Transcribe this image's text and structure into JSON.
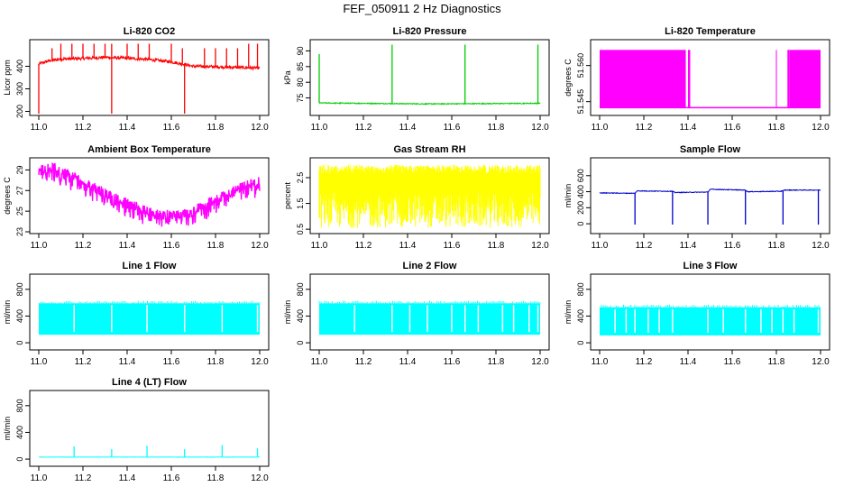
{
  "figure": {
    "title": "FEF_050911  2 Hz Diagnostics"
  },
  "chart_data": [
    {
      "type": "line",
      "title": "Li-820 CO2",
      "ylabel": "Licor ppm",
      "color": "#ff0000",
      "xlim": [
        11.0,
        12.0
      ],
      "ylim": [
        190,
        510
      ],
      "x_ticks": [
        "11.0",
        "11.2",
        "11.4",
        "11.6",
        "11.8",
        "12.0"
      ],
      "y_ticks": [
        200,
        300,
        400
      ],
      "baseline": [
        [
          11.0,
          410
        ],
        [
          11.05,
          425
        ],
        [
          11.1,
          432
        ],
        [
          11.2,
          435
        ],
        [
          11.3,
          440
        ],
        [
          11.4,
          436
        ],
        [
          11.5,
          430
        ],
        [
          11.6,
          420
        ],
        [
          11.65,
          410
        ],
        [
          11.7,
          400
        ],
        [
          11.8,
          398
        ],
        [
          11.9,
          395
        ],
        [
          12.0,
          392
        ]
      ],
      "noise": 14,
      "spikes": [
        [
          11.0,
          190
        ],
        [
          11.06,
          480
        ],
        [
          11.1,
          500
        ],
        [
          11.15,
          500
        ],
        [
          11.2,
          500
        ],
        [
          11.25,
          500
        ],
        [
          11.3,
          500
        ],
        [
          11.33,
          190
        ],
        [
          11.33,
          500
        ],
        [
          11.4,
          500
        ],
        [
          11.45,
          500
        ],
        [
          11.5,
          500
        ],
        [
          11.6,
          500
        ],
        [
          11.65,
          480
        ],
        [
          11.66,
          190
        ],
        [
          11.75,
          480
        ],
        [
          11.8,
          480
        ],
        [
          11.85,
          480
        ],
        [
          11.9,
          480
        ],
        [
          11.95,
          500
        ],
        [
          11.99,
          500
        ]
      ]
    },
    {
      "type": "line",
      "title": "Li-820 Pressure",
      "ylabel": "kPa",
      "color": "#00cc00",
      "xlim": [
        11.0,
        12.0
      ],
      "ylim": [
        70,
        93
      ],
      "x_ticks": [
        "11.0",
        "11.2",
        "11.4",
        "11.6",
        "11.8",
        "12.0"
      ],
      "y_ticks": [
        75,
        80,
        85,
        90
      ],
      "baseline": [
        [
          11.0,
          73.4
        ],
        [
          11.5,
          73.1
        ],
        [
          12.0,
          73.3
        ]
      ],
      "noise": 0.3,
      "spikes": [
        [
          11.0,
          89
        ],
        [
          11.33,
          92
        ],
        [
          11.66,
          92
        ],
        [
          11.99,
          92
        ]
      ]
    },
    {
      "type": "area",
      "title": "Li-820 Temperature",
      "ylabel": "degrees C",
      "color": "#ff00ff",
      "xlim": [
        11.0,
        12.0
      ],
      "ylim": [
        51.54,
        51.57
      ],
      "x_ticks": [
        "11.0",
        "11.2",
        "11.4",
        "11.6",
        "11.8",
        "12.0"
      ],
      "y_ticks": [
        "51.545",
        "51.560"
      ],
      "y_tick_values": [
        51.545,
        51.56
      ],
      "fill_ranges": [
        [
          11.0,
          11.39
        ],
        [
          11.4,
          11.41
        ],
        [
          11.85,
          11.86
        ],
        [
          11.86,
          12.0
        ]
      ],
      "low_level": 51.5425,
      "high_level": 51.5665,
      "spikes": [
        [
          11.8,
          51.5665
        ]
      ]
    },
    {
      "type": "line",
      "title": "Ambient Box Temperature",
      "ylabel": "degrees C",
      "color": "#ff00ff",
      "xlim": [
        11.0,
        12.0
      ],
      "ylim": [
        23,
        30
      ],
      "x_ticks": [
        "11.0",
        "11.2",
        "11.4",
        "11.6",
        "11.8",
        "12.0"
      ],
      "y_ticks": [
        23,
        25,
        27,
        29
      ],
      "baseline": [
        [
          11.0,
          29.0
        ],
        [
          11.05,
          29.3
        ],
        [
          11.1,
          29.0
        ],
        [
          11.2,
          28.0
        ],
        [
          11.3,
          26.8
        ],
        [
          11.4,
          25.8
        ],
        [
          11.5,
          25.0
        ],
        [
          11.6,
          24.6
        ],
        [
          11.65,
          24.7
        ],
        [
          11.7,
          25.1
        ],
        [
          11.8,
          26.2
        ],
        [
          11.9,
          27.2
        ],
        [
          12.0,
          28.0
        ]
      ],
      "noise": 0.9,
      "spikes": []
    },
    {
      "type": "area",
      "title": "Gas Stream RH",
      "ylabel": "percent",
      "color": "#ffff00",
      "xlim": [
        11.0,
        12.0
      ],
      "ylim": [
        0.4,
        3.2
      ],
      "x_ticks": [
        "11.0",
        "11.2",
        "11.4",
        "11.6",
        "11.8",
        "12.0"
      ],
      "y_ticks": [
        "0.5",
        "1.5",
        "2.5"
      ],
      "y_tick_values": [
        0.5,
        1.5,
        2.5
      ],
      "band": [
        0.55,
        3.0
      ]
    },
    {
      "type": "line",
      "title": "Sample Flow",
      "ylabel": "ml/min",
      "color": "#0000cc",
      "xlim": [
        11.0,
        12.0
      ],
      "ylim": [
        -100,
        800
      ],
      "x_ticks": [
        "11.0",
        "11.2",
        "11.4",
        "11.6",
        "11.8",
        "12.0"
      ],
      "y_ticks": [
        0,
        200,
        400,
        600
      ],
      "baseline": [
        [
          11.0,
          385
        ],
        [
          11.16,
          380
        ],
        [
          11.17,
          410
        ],
        [
          11.33,
          405
        ],
        [
          11.34,
          390
        ],
        [
          11.49,
          395
        ],
        [
          11.5,
          430
        ],
        [
          11.66,
          420
        ],
        [
          11.67,
          400
        ],
        [
          11.82,
          405
        ],
        [
          11.84,
          420
        ],
        [
          11.99,
          420
        ]
      ],
      "noise": 8,
      "spikes": [
        [
          11.16,
          -10
        ],
        [
          11.33,
          -10
        ],
        [
          11.49,
          -10
        ],
        [
          11.66,
          -10
        ],
        [
          11.83,
          -10
        ],
        [
          11.99,
          -10
        ]
      ]
    },
    {
      "type": "area",
      "title": "Line 1 Flow",
      "ylabel": "ml/min",
      "color": "#00ffff",
      "xlim": [
        11.0,
        12.0
      ],
      "ylim": [
        -80,
        1000
      ],
      "x_ticks": [
        "11.0",
        "11.2",
        "11.4",
        "11.6",
        "11.8",
        "12.0"
      ],
      "y_ticks": [
        0,
        400,
        800
      ],
      "band": [
        120,
        590
      ],
      "gaps": [
        11.16,
        11.33,
        11.49,
        11.66,
        11.83,
        11.99
      ]
    },
    {
      "type": "area",
      "title": "Line 2 Flow",
      "ylabel": "ml/min",
      "color": "#00ffff",
      "xlim": [
        11.0,
        12.0
      ],
      "ylim": [
        -80,
        1000
      ],
      "x_ticks": [
        "11.0",
        "11.2",
        "11.4",
        "11.6",
        "11.8",
        "12.0"
      ],
      "y_ticks": [
        0,
        400,
        800
      ],
      "band": [
        120,
        590
      ],
      "gaps": [
        11.16,
        11.33,
        11.41,
        11.49,
        11.6,
        11.66,
        11.72,
        11.83,
        11.88,
        11.95,
        11.99
      ]
    },
    {
      "type": "area",
      "title": "Line 3 Flow",
      "ylabel": "ml/min",
      "color": "#00ffff",
      "xlim": [
        11.0,
        12.0
      ],
      "ylim": [
        -80,
        1000
      ],
      "x_ticks": [
        "11.0",
        "11.2",
        "11.4",
        "11.6",
        "11.8",
        "12.0"
      ],
      "y_ticks": [
        0,
        400,
        800
      ],
      "band": [
        110,
        530
      ],
      "gaps": [
        11.07,
        11.12,
        11.16,
        11.22,
        11.27,
        11.33,
        11.49,
        11.56,
        11.66,
        11.73,
        11.78,
        11.83,
        11.88,
        11.99
      ]
    },
    {
      "type": "line",
      "title": "Line 4 (LT) Flow",
      "ylabel": "ml/min",
      "color": "#00ffff",
      "xlim": [
        11.0,
        12.0
      ],
      "ylim": [
        -80,
        1000
      ],
      "x_ticks": [
        "11.0",
        "11.2",
        "11.4",
        "11.6",
        "11.8",
        "12.0"
      ],
      "y_ticks": [
        0,
        400,
        800
      ],
      "baseline": [
        [
          11.0,
          30
        ],
        [
          12.0,
          30
        ]
      ],
      "noise": 4,
      "spikes": [
        [
          11.16,
          190
        ],
        [
          11.33,
          150
        ],
        [
          11.49,
          200
        ],
        [
          11.66,
          150
        ],
        [
          11.83,
          210
        ],
        [
          11.99,
          160
        ]
      ]
    }
  ]
}
